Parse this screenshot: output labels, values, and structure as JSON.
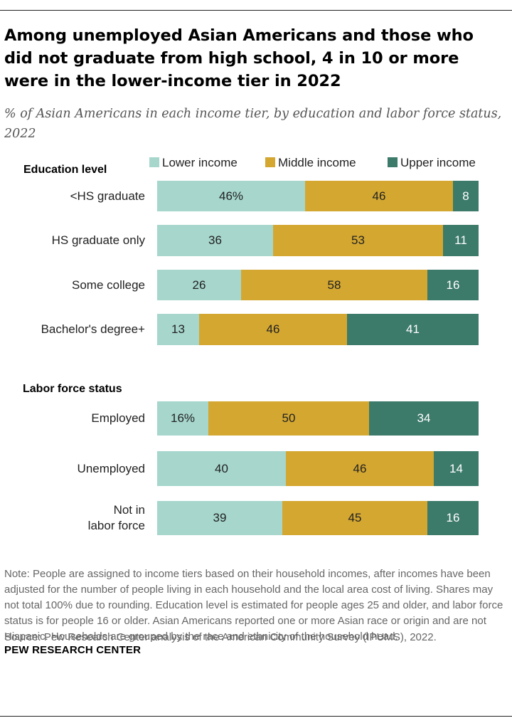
{
  "title": "Among unemployed Asian Americans and those who did not graduate from high school, 4 in 10 or more were in the lower-income tier in 2022",
  "subtitle": "% of Asian Americans in each income tier, by education and labor force status, 2022",
  "colors": {
    "lower": "#a6d6cc",
    "middle": "#d4a731",
    "upper": "#3c7a6a"
  },
  "chart_data": {
    "type": "bar",
    "orientation": "horizontal-stacked",
    "legend": [
      "Lower income",
      "Middle income",
      "Upper income"
    ],
    "legend_position": "top-right",
    "groups": [
      {
        "title": "Education level",
        "rows": [
          {
            "label": "<HS graduate",
            "values": [
              46,
              46,
              8
            ],
            "display": [
              "46%",
              "46",
              "8"
            ]
          },
          {
            "label": "HS graduate only",
            "values": [
              36,
              53,
              11
            ],
            "display": [
              "36",
              "53",
              "11"
            ]
          },
          {
            "label": "Some college",
            "values": [
              26,
              58,
              16
            ],
            "display": [
              "26",
              "58",
              "16"
            ]
          },
          {
            "label": "Bachelor's degree+",
            "values": [
              13,
              46,
              41
            ],
            "display": [
              "13",
              "46",
              "41"
            ]
          }
        ]
      },
      {
        "title": "Labor force status",
        "rows": [
          {
            "label": "Employed",
            "values": [
              16,
              50,
              34
            ],
            "display": [
              "16%",
              "50",
              "34"
            ]
          },
          {
            "label": "Unemployed",
            "values": [
              40,
              46,
              14
            ],
            "display": [
              "40",
              "46",
              "14"
            ]
          },
          {
            "label": "Not in\nlabor force",
            "values": [
              39,
              45,
              16
            ],
            "display": [
              "39",
              "45",
              "16"
            ]
          }
        ]
      }
    ]
  },
  "note": "Note: People are assigned to income tiers based on their household incomes, after incomes have been adjusted for the number of people living in each household and the local area cost of living. Shares may not total 100% due to rounding. Education level is estimated for people ages 25 and older, and labor force status is for people 16 or older. Asian Americans reported one or more Asian race or origin and are not Hispanic. Households are grouped by the race and ethnicity of the household head.",
  "source": "Source: Pew Research Center analysis of the American Community Survey (IPUMS), 2022.",
  "brand": "PEW RESEARCH CENTER"
}
